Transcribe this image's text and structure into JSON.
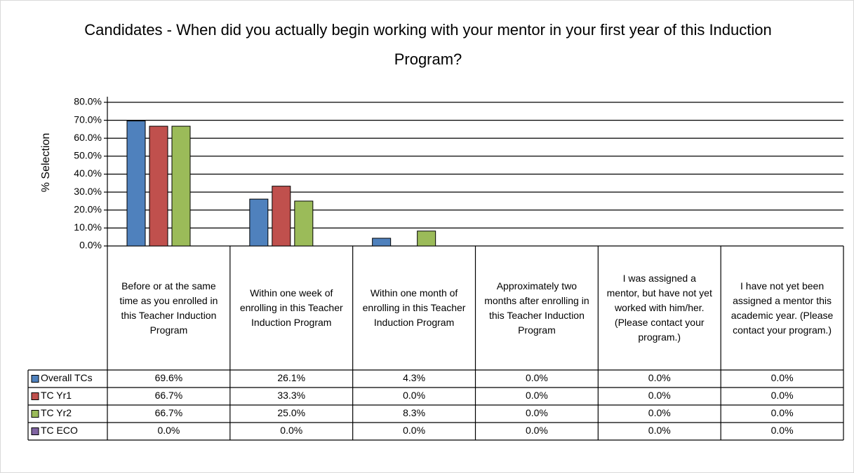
{
  "chart_data": {
    "type": "bar",
    "title": "Candidates - When did you actually begin working with your mentor in your first year of this Induction Program?",
    "y_label": "% Selection",
    "categories": [
      "Before or at the same time as you enrolled in this Teacher Induction Program",
      "Within one week of enrolling in this Teacher Induction Program",
      "Within one month of enrolling in this Teacher Induction Program",
      "Approximately two months after enrolling in this Teacher Induction Program",
      "I was assigned a mentor, but have not yet worked with him/her. (Please contact your program.)",
      "I have not yet been assigned a mentor this academic year. (Please contact your program.)"
    ],
    "series": [
      {
        "name": "Overall TCs",
        "color": "#4f81bd",
        "values": [
          69.6,
          26.1,
          4.3,
          0,
          0,
          0
        ],
        "value_labels": [
          "69.6%",
          "26.1%",
          "4.3%",
          "0.0%",
          "0.0%",
          "0.0%"
        ]
      },
      {
        "name": "TC Yr1",
        "color": "#c0504d",
        "values": [
          66.7,
          33.3,
          0,
          0,
          0,
          0
        ],
        "value_labels": [
          "66.7%",
          "33.3%",
          "0.0%",
          "0.0%",
          "0.0%",
          "0.0%"
        ]
      },
      {
        "name": "TC Yr2",
        "color": "#9bbb59",
        "values": [
          66.7,
          25.0,
          8.3,
          0,
          0,
          0
        ],
        "value_labels": [
          "66.7%",
          "25.0%",
          "8.3%",
          "0.0%",
          "0.0%",
          "0.0%"
        ]
      },
      {
        "name": "TC ECO",
        "color": "#8064a2",
        "values": [
          0,
          0,
          0,
          0,
          0,
          0
        ],
        "value_labels": [
          "0.0%",
          "0.0%",
          "0.0%",
          "0.0%",
          "0.0%",
          "0.0%"
        ]
      }
    ],
    "ylim": [
      0,
      80
    ],
    "yticks": [
      {
        "value": 0,
        "label": "0.0%"
      },
      {
        "value": 10,
        "label": "10.0%"
      },
      {
        "value": 20,
        "label": "20.0%"
      },
      {
        "value": 30,
        "label": "30.0%"
      },
      {
        "value": 40,
        "label": "40.0%"
      },
      {
        "value": 50,
        "label": "50.0%"
      },
      {
        "value": 60,
        "label": "60.0%"
      },
      {
        "value": 70,
        "label": "70.0%"
      },
      {
        "value": 80,
        "label": "80.0%"
      }
    ],
    "grid": true
  }
}
